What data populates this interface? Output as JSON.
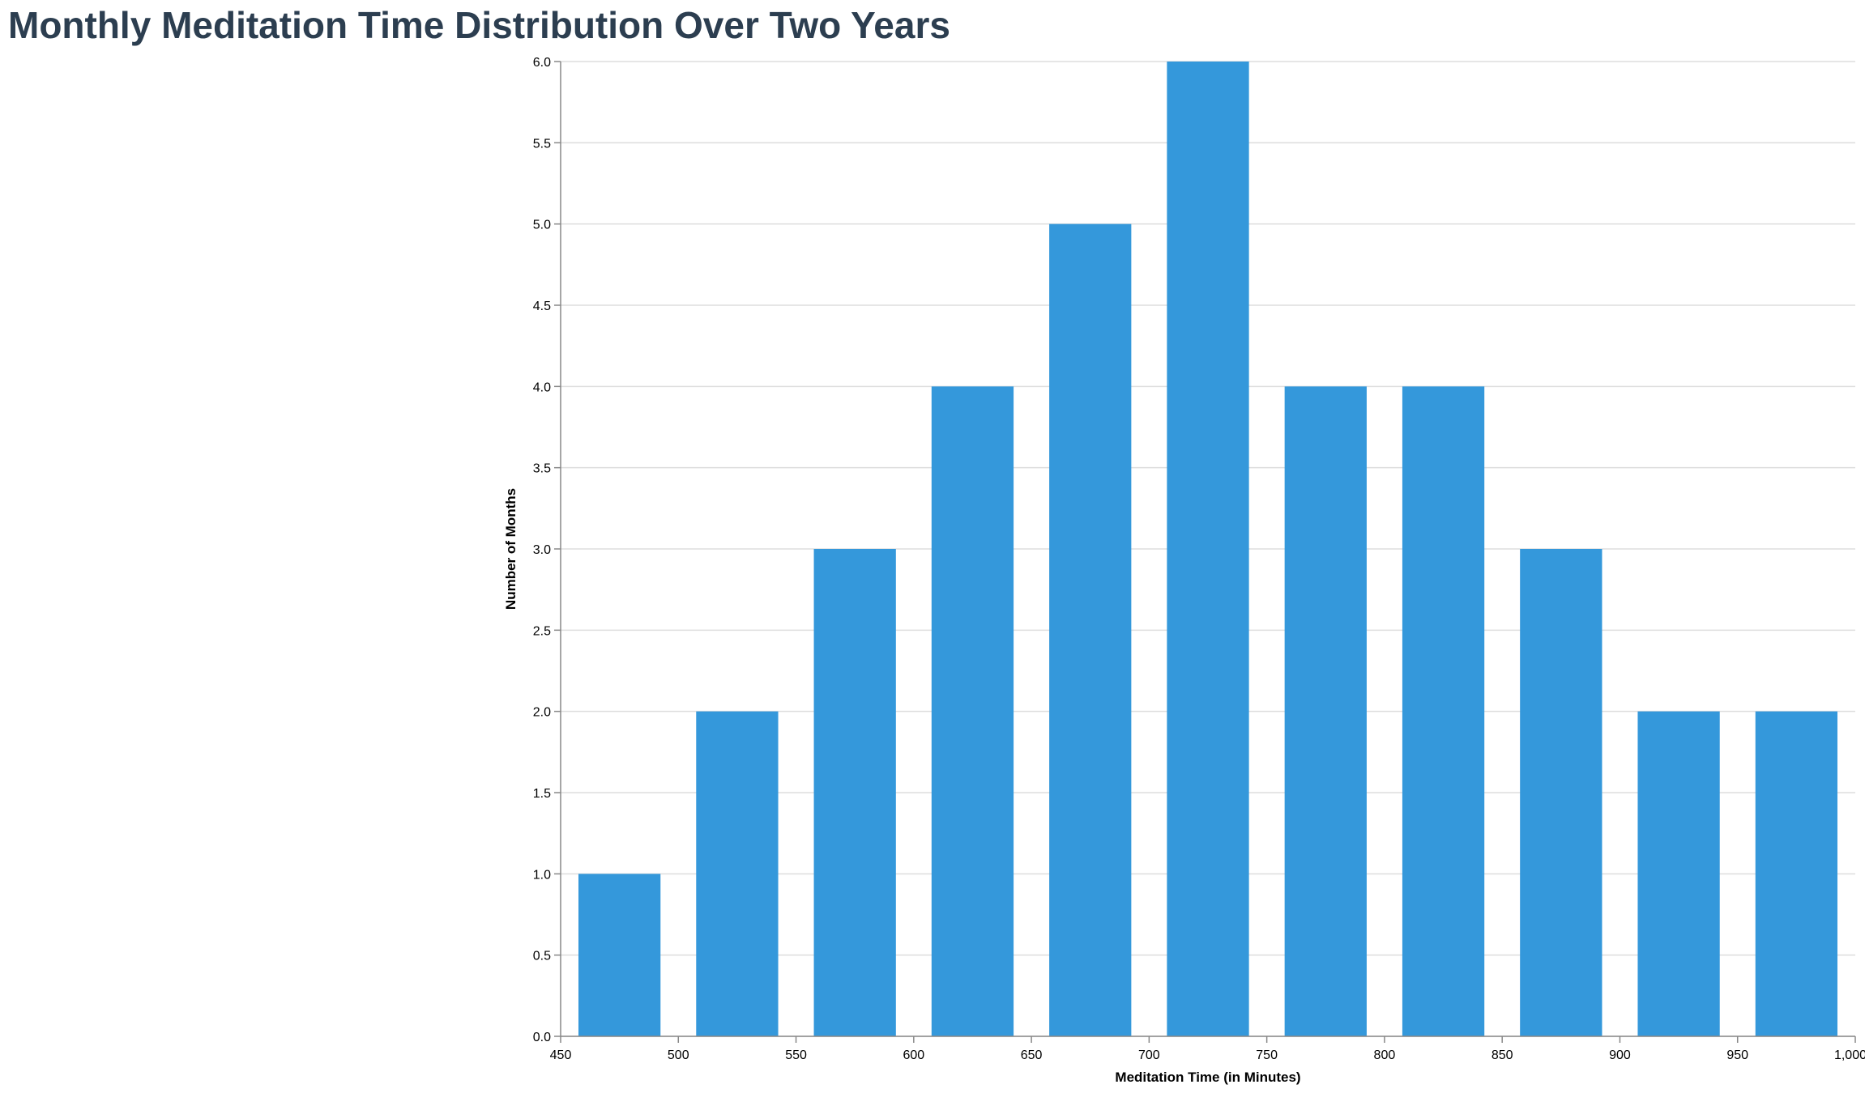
{
  "chart_data": {
    "type": "bar",
    "title": "Monthly Meditation Time Distribution Over Two Years",
    "xlabel": "Meditation Time (in Minutes)",
    "ylabel": "Number of Months",
    "bin_width": 50,
    "bins": [
      {
        "start": 450,
        "end": 500,
        "count": 1
      },
      {
        "start": 500,
        "end": 550,
        "count": 2
      },
      {
        "start": 550,
        "end": 600,
        "count": 3
      },
      {
        "start": 600,
        "end": 650,
        "count": 4
      },
      {
        "start": 650,
        "end": 700,
        "count": 5
      },
      {
        "start": 700,
        "end": 750,
        "count": 6
      },
      {
        "start": 750,
        "end": 800,
        "count": 4
      },
      {
        "start": 800,
        "end": 850,
        "count": 4
      },
      {
        "start": 850,
        "end": 900,
        "count": 3
      },
      {
        "start": 900,
        "end": 950,
        "count": 2
      },
      {
        "start": 950,
        "end": 1000,
        "count": 2
      }
    ],
    "xlim": [
      450,
      1000
    ],
    "ylim": [
      0,
      6
    ],
    "x_ticks": [
      "450",
      "500",
      "550",
      "600",
      "650",
      "700",
      "750",
      "800",
      "850",
      "900",
      "950",
      "1,000"
    ],
    "y_ticks": [
      "0.0",
      "0.5",
      "1.0",
      "1.5",
      "2.0",
      "2.5",
      "3.0",
      "3.5",
      "4.0",
      "4.5",
      "5.0",
      "5.5",
      "6.0"
    ],
    "grid": true,
    "colors": {
      "bar": "#3498db",
      "title": "#2c3e50",
      "grid": "#dddddd",
      "axis": "#888888"
    }
  }
}
